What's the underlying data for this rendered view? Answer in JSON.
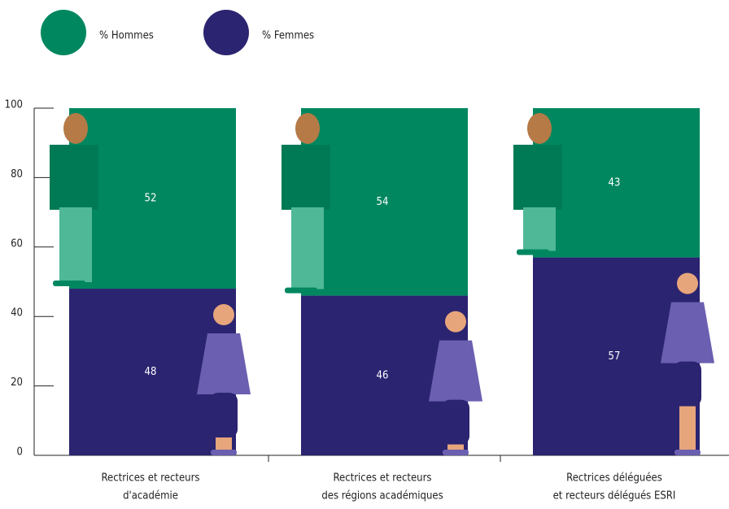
{
  "chart_data": {
    "type": "stacked-bar",
    "categories": [
      [
        "Rectrices et recteurs",
        "d'académie"
      ],
      [
        "Rectrices et recteurs",
        "des régions académiques"
      ],
      [
        "Rectrices déléguées",
        "et recteurs délégués ESRI"
      ]
    ],
    "series": [
      {
        "name": "% Femmes",
        "color": "#2b2470",
        "values": [
          48,
          46,
          57
        ]
      },
      {
        "name": "% Hommes",
        "color": "#00875f",
        "values": [
          52,
          54,
          43
        ]
      }
    ],
    "ylim": [
      0,
      100
    ],
    "yticks": [
      0,
      20,
      40,
      60,
      80,
      100
    ]
  }
}
